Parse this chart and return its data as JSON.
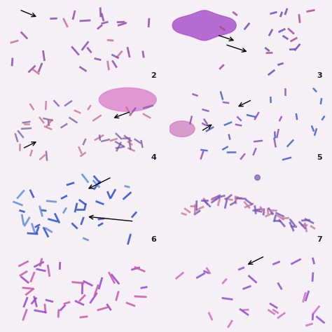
{
  "figure_size": [
    4.74,
    4.74
  ],
  "dpi": 100,
  "background_color": "#f5f0f5",
  "panel_labels": [
    "2",
    "3",
    "4",
    "5",
    "6",
    "7",
    "",
    ""
  ],
  "grid_rows": 4,
  "grid_cols": 2,
  "panel_bg_colors": [
    "#f8f5f8",
    "#f5f5fa",
    "#f0f5f8",
    "#f8f5fc",
    "#f5f5f8",
    "#f5f5f8",
    "#f5f0f5",
    "#f8f5f8"
  ],
  "label_color": "#1a1a2e",
  "label_fontsize": 8
}
